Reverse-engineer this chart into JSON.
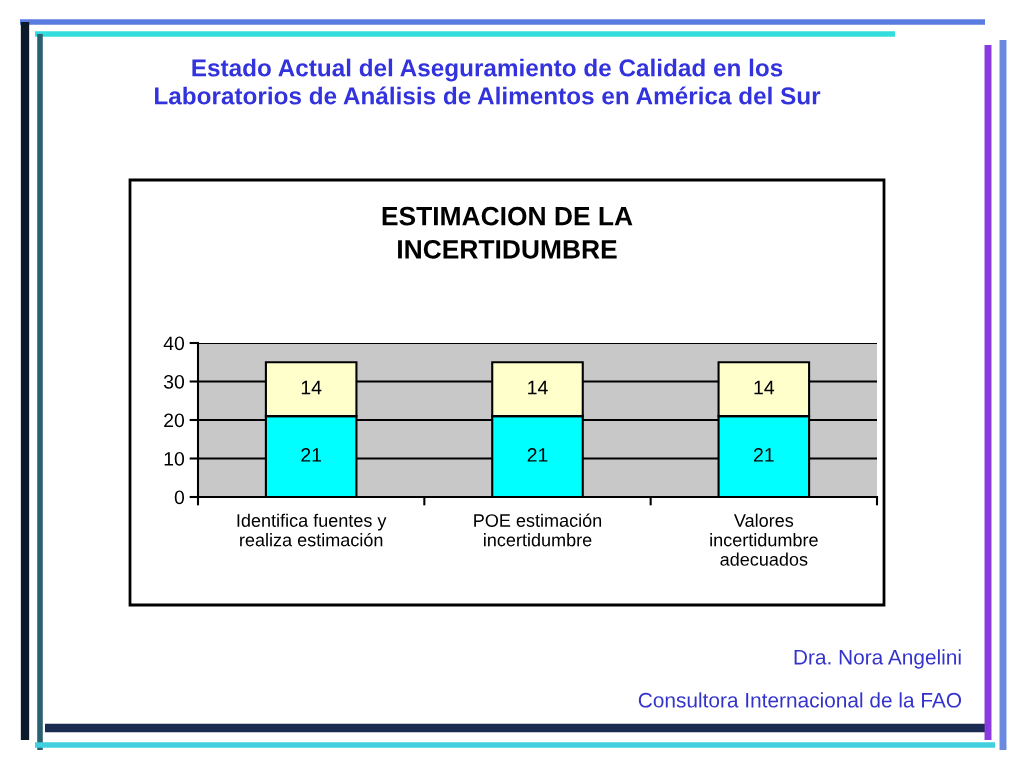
{
  "chart_data": {
    "type": "bar",
    "title": "Estado Actual del Aseguramiento de Calidad en los\nLaboratorios de Análisis de Alimentos en América del Sur",
    "subtitle": "ESTIMACION DE LA\nINCERTIDUMBRE",
    "categories": [
      "Identifica fuentes y\nrealiza estimación",
      "POE estimación\nincertidumbre",
      "Valores\nincertidumbre\nadecuados"
    ],
    "series": [
      {
        "color": "#00ffff",
        "values": [
          21,
          21,
          21
        ]
      },
      {
        "color": "#ffffcc",
        "values": [
          14,
          14,
          14
        ]
      }
    ],
    "stacked": true,
    "ylim": [
      0,
      40
    ],
    "yticks": [
      0,
      10,
      20,
      30,
      40
    ],
    "grid": "y",
    "data_labels": true,
    "annotations": [
      "Dra. Nora Angelini",
      "Consultora Internacional de la FAO"
    ]
  }
}
